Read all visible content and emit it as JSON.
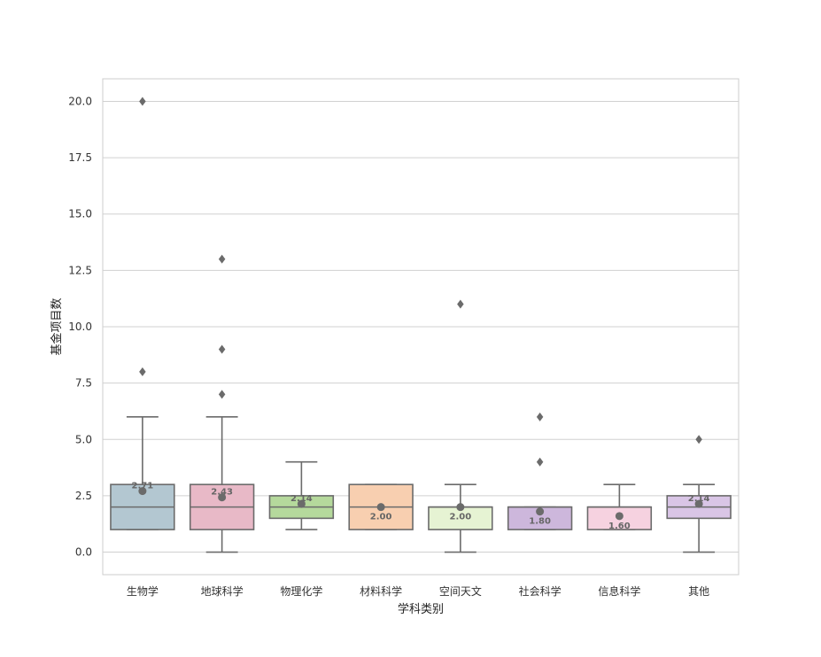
{
  "chart_data": {
    "type": "box",
    "xlabel": "学科类别",
    "ylabel": "基金项目数",
    "ylim": [
      -1,
      21
    ],
    "yticks": [
      "0.0",
      "2.5",
      "5.0",
      "7.5",
      "10.0",
      "12.5",
      "15.0",
      "17.5",
      "20.0"
    ],
    "ytick_values": [
      0,
      2.5,
      5,
      7.5,
      10,
      12.5,
      15,
      17.5,
      20
    ],
    "grid": true,
    "categories": [
      "生物学",
      "地球科学",
      "物理化学",
      "材料科学",
      "空间天文",
      "社会科学",
      "信息科学",
      "其他"
    ],
    "boxes": [
      {
        "category": "生物学",
        "whisker_low": 1,
        "q1": 1,
        "median": 2,
        "q3": 3,
        "whisker_high": 6,
        "mean": 2.71,
        "mean_label": "2.71",
        "outliers": [
          8,
          20
        ],
        "color": "#b3c7d1"
      },
      {
        "category": "地球科学",
        "whisker_low": 0,
        "q1": 1,
        "median": 2,
        "q3": 3,
        "whisker_high": 6,
        "mean": 2.43,
        "mean_label": "2.43",
        "outliers": [
          7,
          9,
          13
        ],
        "color": "#e8b9c7"
      },
      {
        "category": "物理化学",
        "whisker_low": 1,
        "q1": 1.5,
        "median": 2,
        "q3": 2.5,
        "whisker_high": 4,
        "mean": 2.14,
        "mean_label": "2.14",
        "outliers": [],
        "color": "#b5d99c"
      },
      {
        "category": "材料科学",
        "whisker_low": 1,
        "q1": 1,
        "median": 2,
        "q3": 3,
        "whisker_high": 3,
        "mean": 2.0,
        "mean_label": "2.00",
        "outliers": [],
        "color": "#f8cfb0"
      },
      {
        "category": "空间天文",
        "whisker_low": 0,
        "q1": 1,
        "median": 2,
        "q3": 2,
        "whisker_high": 3,
        "mean": 2.0,
        "mean_label": "2.00",
        "outliers": [
          11
        ],
        "color": "#e6f3d3"
      },
      {
        "category": "社会科学",
        "whisker_low": 1,
        "q1": 1,
        "median": 2,
        "q3": 2,
        "whisker_high": 2,
        "mean": 1.8,
        "mean_label": "1.80",
        "outliers": [
          4,
          6
        ],
        "color": "#cdb7dc"
      },
      {
        "category": "信息科学",
        "whisker_low": 1,
        "q1": 1,
        "median": 2,
        "q3": 2,
        "whisker_high": 3,
        "mean": 1.6,
        "mean_label": "1.60",
        "outliers": [],
        "color": "#f6d2e0"
      },
      {
        "category": "其他",
        "whisker_low": 0,
        "q1": 1.5,
        "median": 2,
        "q3": 2.5,
        "whisker_high": 3,
        "mean": 2.14,
        "mean_label": "2.14",
        "outliers": [
          5
        ],
        "color": "#d9c5e6"
      }
    ],
    "line_color": "#6b6b6b"
  }
}
